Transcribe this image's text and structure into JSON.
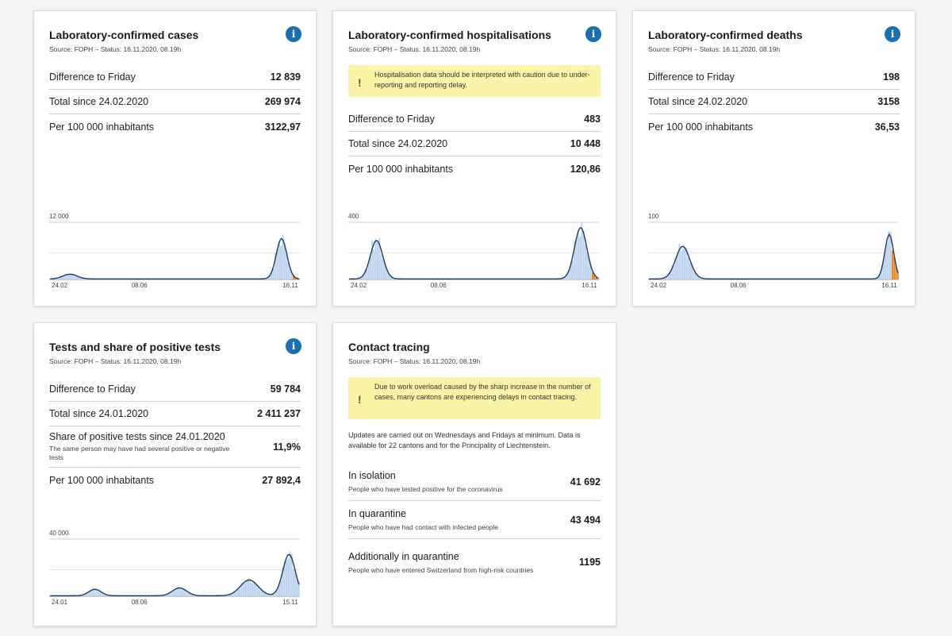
{
  "colors": {
    "accent": "#1a6fb0",
    "bar_fill": "#b9d3ee",
    "line": "#1f3a5f",
    "latest": "#e8821e",
    "warning_bg": "#fbf4a8"
  },
  "cards": {
    "cases": {
      "title": "Laboratory-confirmed cases",
      "source": "Source: FOPH – Status: 16.11.2020, 08.19h",
      "info_icon": "info-icon",
      "stats": [
        {
          "label": "Difference to Friday",
          "value": "12 839"
        },
        {
          "label": "Total since 24.02.2020",
          "value": "269 974"
        },
        {
          "label": "Per 100 000 inhabitants",
          "value": "3122,97"
        }
      ]
    },
    "hosp": {
      "title": "Laboratory-confirmed hospitalisations",
      "source": "Source: FOPH – Status: 16.11.2020, 08.19h",
      "warning": "Hospitalisation data should be interpreted with caution due to under-reporting and reporting delay.",
      "stats": [
        {
          "label": "Difference to Friday",
          "value": "483"
        },
        {
          "label": "Total since 24.02.2020",
          "value": "10 448"
        },
        {
          "label": "Per 100 000 inhabitants",
          "value": "120,86"
        }
      ]
    },
    "deaths": {
      "title": "Laboratory-confirmed deaths",
      "source": "Source: FOPH – Status: 16.11.2020, 08.19h",
      "stats": [
        {
          "label": "Difference to Friday",
          "value": "198"
        },
        {
          "label": "Total since 24.02.2020",
          "value": "3158"
        },
        {
          "label": "Per 100 000 inhabitants",
          "value": "36,53"
        }
      ]
    },
    "tests": {
      "title": "Tests and share of positive tests",
      "source": "Source: FOPH – Status: 16.11.2020, 08.19h",
      "stats": [
        {
          "label": "Difference to Friday",
          "value": "59 784"
        },
        {
          "label": "Total since 24.01.2020",
          "value": "2 411 237"
        },
        {
          "label": "Share of positive tests since 24.01.2020",
          "sub": "The same person may have had several positive or negative tests",
          "value": "11,9%"
        },
        {
          "label": "Per 100 000 inhabitants",
          "value": "27 892,4"
        }
      ]
    },
    "tracing": {
      "title": "Contact tracing",
      "source": "Source: FOPH – Status: 16.11.2020, 08.19h",
      "warning": "Due to work overload caused by the sharp increase in the number of cases, many cantons are experiencing delays in contact tracing.",
      "note": "Updates are carried out on Wednesdays and Fridays at minimum. Data is available for 22 cantons and for the Principality of Liechtenstein.",
      "rows": [
        {
          "label": "In isolation",
          "sub": "People who have tested positive for the coronavirus",
          "value": "41 692"
        },
        {
          "label": "In quarantine",
          "sub": "People who have had contact with infected people",
          "value": "43 494"
        },
        {
          "label": "Additionally in quarantine",
          "sub": "People who have entered Switzerland from high-risk countries",
          "value": "1195"
        }
      ]
    }
  },
  "chart_data": [
    {
      "id": "cases",
      "type": "bar",
      "ytick": "12 000",
      "ymax": 12000,
      "xticks": [
        "24.02",
        "08.06",
        "16.11"
      ],
      "peaks": [
        {
          "pos": 0.08,
          "value": 1000,
          "width": 0.04
        },
        {
          "pos": 0.93,
          "value": 8500,
          "width": 0.03
        }
      ],
      "latest_days": 4
    },
    {
      "id": "hosp",
      "type": "bar",
      "ytick": "400",
      "ymax": 400,
      "xticks": [
        "24.02",
        "08.06",
        "16.11"
      ],
      "peaks": [
        {
          "pos": 0.11,
          "value": 270,
          "width": 0.035
        },
        {
          "pos": 0.93,
          "value": 360,
          "width": 0.035
        }
      ],
      "latest_days": 4
    },
    {
      "id": "deaths",
      "type": "bar",
      "ytick": "100",
      "ymax": 100,
      "xticks": [
        "24.02",
        "08.06",
        "16.11"
      ],
      "peaks": [
        {
          "pos": 0.135,
          "value": 57,
          "width": 0.04
        },
        {
          "pos": 0.965,
          "value": 78,
          "width": 0.025
        }
      ],
      "latest_days": 4
    },
    {
      "id": "tests",
      "type": "bar",
      "ytick": "40 000",
      "ymax": 40000,
      "xticks": [
        "24.01",
        "08.06",
        "15.11"
      ],
      "peaks": [
        {
          "pos": 0.18,
          "value": 4500,
          "width": 0.035
        },
        {
          "pos": 0.52,
          "value": 5500,
          "width": 0.04
        },
        {
          "pos": 0.8,
          "value": 11000,
          "width": 0.05
        },
        {
          "pos": 0.96,
          "value": 29000,
          "width": 0.035
        }
      ],
      "latest_days": 0
    }
  ]
}
